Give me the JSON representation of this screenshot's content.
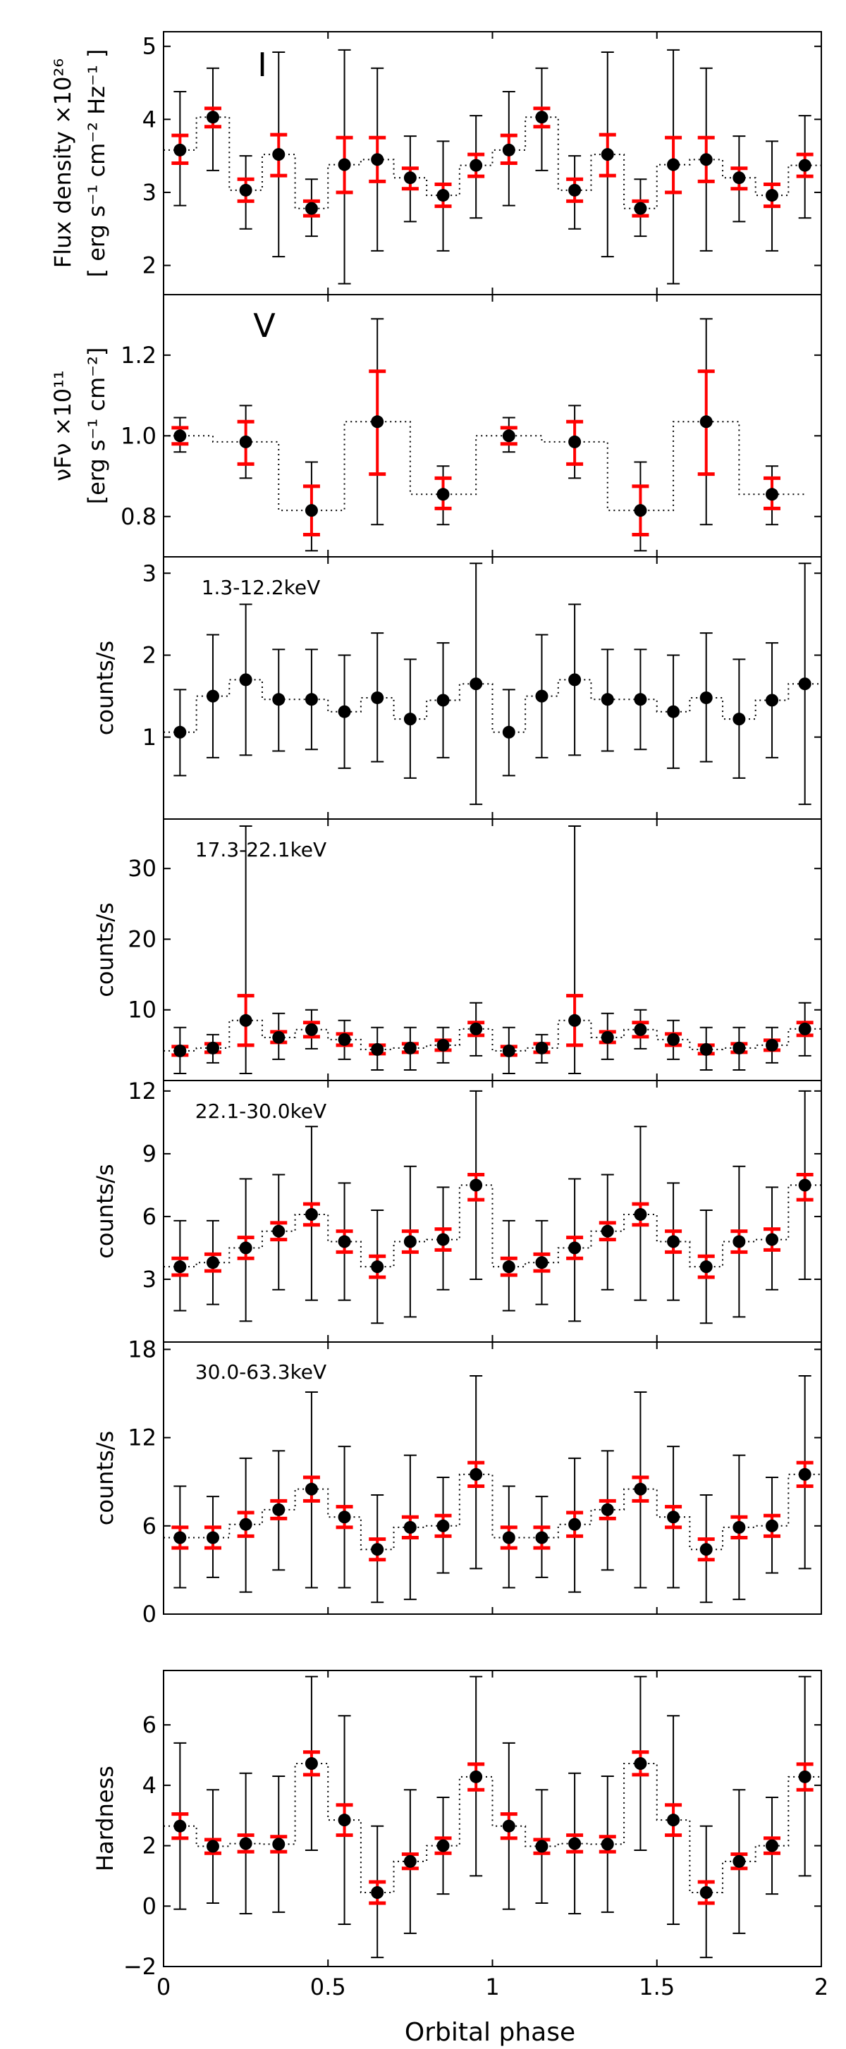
{
  "chart_data": {
    "type": "multi-panel errorbar",
    "xlabel": "Orbital phase",
    "xlim": [
      0,
      2
    ],
    "xticks": [
      "0",
      "0.5",
      "1",
      "1.5",
      "2"
    ],
    "colors": {
      "outer_error": "#000000",
      "inner_error": "#ff0000",
      "marker": "#000000",
      "step_line": "#000000"
    },
    "panels": [
      {
        "id": "I",
        "annotation": "I",
        "ylabel": [
          "Flux density ×10²⁶",
          "[ erg s⁻¹ cm⁻² Hz⁻¹ ]"
        ],
        "ylim": [
          1.6,
          5.2
        ],
        "yticks": [
          2,
          3,
          4,
          5
        ],
        "ytick_labels": [
          "2",
          "3",
          "4",
          "5"
        ],
        "points": [
          {
            "x": 0.05,
            "y": 3.58,
            "lo": 2.82,
            "hi": 4.38,
            "rlo": 3.4,
            "rhi": 3.78
          },
          {
            "x": 0.15,
            "y": 4.03,
            "lo": 3.3,
            "hi": 4.7,
            "rlo": 3.9,
            "rhi": 4.15
          },
          {
            "x": 0.25,
            "y": 3.03,
            "lo": 2.5,
            "hi": 3.5,
            "rlo": 2.88,
            "rhi": 3.18
          },
          {
            "x": 0.35,
            "y": 3.52,
            "lo": 2.12,
            "hi": 4.92,
            "rlo": 3.23,
            "rhi": 3.79
          },
          {
            "x": 0.45,
            "y": 2.78,
            "lo": 2.4,
            "hi": 3.18,
            "rlo": 2.68,
            "rhi": 2.88
          },
          {
            "x": 0.55,
            "y": 3.38,
            "lo": 1.75,
            "hi": 4.95,
            "rlo": 3.0,
            "rhi": 3.75
          },
          {
            "x": 0.65,
            "y": 3.45,
            "lo": 2.2,
            "hi": 4.7,
            "rlo": 3.15,
            "rhi": 3.75
          },
          {
            "x": 0.75,
            "y": 3.2,
            "lo": 2.6,
            "hi": 3.77,
            "rlo": 3.05,
            "rhi": 3.33
          },
          {
            "x": 0.85,
            "y": 2.96,
            "lo": 2.2,
            "hi": 3.7,
            "rlo": 2.81,
            "rhi": 3.11
          },
          {
            "x": 0.95,
            "y": 3.37,
            "lo": 2.65,
            "hi": 4.05,
            "rlo": 3.22,
            "rhi": 3.52
          }
        ]
      },
      {
        "id": "V",
        "annotation": "V",
        "ylabel": [
          "νFν ×10¹¹",
          "[erg s⁻¹ cm⁻²]"
        ],
        "ylim": [
          0.7,
          1.35
        ],
        "yticks": [
          0.8,
          1.0,
          1.2
        ],
        "ytick_labels": [
          "0.8",
          "1.0",
          "1.2"
        ],
        "points": [
          {
            "x": 0.05,
            "y": 1.0,
            "lo": 0.96,
            "hi": 1.045,
            "rlo": 0.98,
            "rhi": 1.02
          },
          {
            "x": 0.25,
            "y": 0.985,
            "lo": 0.895,
            "hi": 1.075,
            "rlo": 0.93,
            "rhi": 1.035
          },
          {
            "x": 0.45,
            "y": 0.815,
            "lo": 0.715,
            "hi": 0.935,
            "rlo": 0.755,
            "rhi": 0.875
          },
          {
            "x": 0.65,
            "y": 1.035,
            "lo": 0.78,
            "hi": 1.29,
            "rlo": 0.905,
            "rhi": 1.16
          },
          {
            "x": 0.85,
            "y": 0.855,
            "lo": 0.78,
            "hi": 0.925,
            "rlo": 0.82,
            "rhi": 0.895
          }
        ]
      },
      {
        "id": "x1",
        "annotation": "1.3-12.2keV",
        "ylabel": [
          "counts/s"
        ],
        "ylim": [
          0,
          3.2
        ],
        "yticks": [
          1,
          2,
          3
        ],
        "ytick_labels": [
          "1",
          "2",
          "3"
        ],
        "points": [
          {
            "x": 0.05,
            "y": 1.06,
            "lo": 0.53,
            "hi": 1.58
          },
          {
            "x": 0.15,
            "y": 1.5,
            "lo": 0.75,
            "hi": 2.25
          },
          {
            "x": 0.25,
            "y": 1.7,
            "lo": 0.78,
            "hi": 2.62
          },
          {
            "x": 0.35,
            "y": 1.46,
            "lo": 0.83,
            "hi": 2.07
          },
          {
            "x": 0.45,
            "y": 1.46,
            "lo": 0.85,
            "hi": 2.07
          },
          {
            "x": 0.55,
            "y": 1.31,
            "lo": 0.62,
            "hi": 2.0
          },
          {
            "x": 0.65,
            "y": 1.48,
            "lo": 0.7,
            "hi": 2.27
          },
          {
            "x": 0.75,
            "y": 1.22,
            "lo": 0.5,
            "hi": 1.95
          },
          {
            "x": 0.85,
            "y": 1.45,
            "lo": 0.75,
            "hi": 2.15
          },
          {
            "x": 0.95,
            "y": 1.65,
            "lo": 0.18,
            "hi": 3.12
          }
        ]
      },
      {
        "id": "x2",
        "annotation": "17.3-22.1keV",
        "ylabel": [
          "counts/s"
        ],
        "ylim": [
          0,
          37
        ],
        "yticks": [
          10,
          20,
          30
        ],
        "ytick_labels": [
          "10",
          "20",
          "30"
        ],
        "points": [
          {
            "x": 0.05,
            "y": 4.2,
            "lo": 1.0,
            "hi": 7.5,
            "rlo": 3.6,
            "rhi": 4.8
          },
          {
            "x": 0.15,
            "y": 4.6,
            "lo": 2.5,
            "hi": 6.5,
            "rlo": 4.0,
            "rhi": 5.2
          },
          {
            "x": 0.25,
            "y": 8.5,
            "lo": 1.0,
            "hi": 36.0,
            "rlo": 5.0,
            "rhi": 12.0
          },
          {
            "x": 0.35,
            "y": 6.1,
            "lo": 3.0,
            "hi": 9.5,
            "rlo": 5.4,
            "rhi": 6.9
          },
          {
            "x": 0.45,
            "y": 7.2,
            "lo": 4.5,
            "hi": 10.0,
            "rlo": 6.2,
            "rhi": 8.2
          },
          {
            "x": 0.55,
            "y": 5.8,
            "lo": 3.0,
            "hi": 8.5,
            "rlo": 5.0,
            "rhi": 6.6
          },
          {
            "x": 0.65,
            "y": 4.4,
            "lo": 1.5,
            "hi": 7.5,
            "rlo": 3.8,
            "rhi": 5.0
          },
          {
            "x": 0.75,
            "y": 4.6,
            "lo": 1.5,
            "hi": 7.5,
            "rlo": 4.0,
            "rhi": 5.2
          },
          {
            "x": 0.85,
            "y": 5.0,
            "lo": 2.5,
            "hi": 7.5,
            "rlo": 4.3,
            "rhi": 5.7
          },
          {
            "x": 0.95,
            "y": 7.3,
            "lo": 3.5,
            "hi": 11.0,
            "rlo": 6.4,
            "rhi": 8.2
          }
        ]
      },
      {
        "id": "x3",
        "annotation": "22.1-30.0keV",
        "ylabel": [
          "counts/s"
        ],
        "ylim": [
          0,
          12.5
        ],
        "yticks": [
          3,
          6,
          9,
          12
        ],
        "ytick_labels": [
          "3",
          "6",
          "9",
          "12"
        ],
        "points": [
          {
            "x": 0.05,
            "y": 3.6,
            "lo": 1.5,
            "hi": 5.8,
            "rlo": 3.2,
            "rhi": 4.0
          },
          {
            "x": 0.15,
            "y": 3.8,
            "lo": 1.8,
            "hi": 5.8,
            "rlo": 3.4,
            "rhi": 4.2
          },
          {
            "x": 0.25,
            "y": 4.5,
            "lo": 1.0,
            "hi": 7.8,
            "rlo": 4.0,
            "rhi": 5.0
          },
          {
            "x": 0.35,
            "y": 5.3,
            "lo": 2.5,
            "hi": 8.0,
            "rlo": 4.9,
            "rhi": 5.7
          },
          {
            "x": 0.45,
            "y": 6.1,
            "lo": 2.0,
            "hi": 10.3,
            "rlo": 5.6,
            "rhi": 6.6
          },
          {
            "x": 0.55,
            "y": 4.8,
            "lo": 2.0,
            "hi": 7.6,
            "rlo": 4.3,
            "rhi": 5.3
          },
          {
            "x": 0.65,
            "y": 3.6,
            "lo": 0.9,
            "hi": 6.3,
            "rlo": 3.1,
            "rhi": 4.1
          },
          {
            "x": 0.75,
            "y": 4.8,
            "lo": 1.2,
            "hi": 8.4,
            "rlo": 4.3,
            "rhi": 5.3
          },
          {
            "x": 0.85,
            "y": 4.9,
            "lo": 2.5,
            "hi": 7.4,
            "rlo": 4.4,
            "rhi": 5.4
          },
          {
            "x": 0.95,
            "y": 7.5,
            "lo": 3.0,
            "hi": 12.0,
            "rlo": 6.8,
            "rhi": 8.0
          }
        ]
      },
      {
        "id": "x4",
        "annotation": "30.0-63.3keV",
        "ylabel": [
          "counts/s"
        ],
        "ylim": [
          0,
          18.5
        ],
        "yticks": [
          0,
          6,
          12,
          18
        ],
        "ytick_labels": [
          "0",
          "6",
          "12",
          "18"
        ],
        "points": [
          {
            "x": 0.05,
            "y": 5.2,
            "lo": 1.8,
            "hi": 8.7,
            "rlo": 4.5,
            "rhi": 5.9
          },
          {
            "x": 0.15,
            "y": 5.2,
            "lo": 2.5,
            "hi": 8.0,
            "rlo": 4.5,
            "rhi": 5.9
          },
          {
            "x": 0.25,
            "y": 6.1,
            "lo": 1.5,
            "hi": 10.6,
            "rlo": 5.3,
            "rhi": 6.9
          },
          {
            "x": 0.35,
            "y": 7.1,
            "lo": 3.0,
            "hi": 11.1,
            "rlo": 6.5,
            "rhi": 7.7
          },
          {
            "x": 0.45,
            "y": 8.5,
            "lo": 1.8,
            "hi": 15.1,
            "rlo": 7.7,
            "rhi": 9.3
          },
          {
            "x": 0.55,
            "y": 6.6,
            "lo": 1.8,
            "hi": 11.4,
            "rlo": 5.9,
            "rhi": 7.3
          },
          {
            "x": 0.65,
            "y": 4.4,
            "lo": 0.8,
            "hi": 8.1,
            "rlo": 3.7,
            "rhi": 5.1
          },
          {
            "x": 0.75,
            "y": 5.9,
            "lo": 1.0,
            "hi": 10.8,
            "rlo": 5.2,
            "rhi": 6.6
          },
          {
            "x": 0.85,
            "y": 6.0,
            "lo": 2.8,
            "hi": 9.3,
            "rlo": 5.3,
            "rhi": 6.7
          },
          {
            "x": 0.95,
            "y": 9.5,
            "lo": 3.1,
            "hi": 16.2,
            "rlo": 8.7,
            "rhi": 10.3
          }
        ]
      },
      {
        "id": "H",
        "annotation": "",
        "ylabel": [
          "Hardness"
        ],
        "ylim": [
          -2,
          7.8
        ],
        "yticks": [
          -2,
          0,
          2,
          4,
          6
        ],
        "ytick_labels": [
          "−2",
          "0",
          "2",
          "4",
          "6"
        ],
        "points": [
          {
            "x": 0.05,
            "y": 2.65,
            "lo": -0.1,
            "hi": 5.4,
            "rlo": 2.25,
            "rhi": 3.05
          },
          {
            "x": 0.15,
            "y": 1.98,
            "lo": 0.1,
            "hi": 3.85,
            "rlo": 1.75,
            "rhi": 2.2
          },
          {
            "x": 0.25,
            "y": 2.07,
            "lo": -0.25,
            "hi": 4.4,
            "rlo": 1.8,
            "rhi": 2.35
          },
          {
            "x": 0.35,
            "y": 2.05,
            "lo": -0.2,
            "hi": 4.3,
            "rlo": 1.8,
            "rhi": 2.3
          },
          {
            "x": 0.45,
            "y": 4.72,
            "lo": 1.85,
            "hi": 7.6,
            "rlo": 4.35,
            "rhi": 5.1
          },
          {
            "x": 0.55,
            "y": 2.85,
            "lo": -0.6,
            "hi": 6.3,
            "rlo": 2.35,
            "rhi": 3.35
          },
          {
            "x": 0.65,
            "y": 0.45,
            "lo": -1.7,
            "hi": 2.65,
            "rlo": 0.1,
            "rhi": 0.8
          },
          {
            "x": 0.75,
            "y": 1.48,
            "lo": -0.9,
            "hi": 3.85,
            "rlo": 1.25,
            "rhi": 1.72
          },
          {
            "x": 0.85,
            "y": 2.0,
            "lo": 0.4,
            "hi": 3.6,
            "rlo": 1.75,
            "rhi": 2.25
          },
          {
            "x": 0.95,
            "y": 4.28,
            "lo": 1.0,
            "hi": 7.6,
            "rlo": 3.85,
            "rhi": 4.7
          }
        ]
      }
    ]
  }
}
